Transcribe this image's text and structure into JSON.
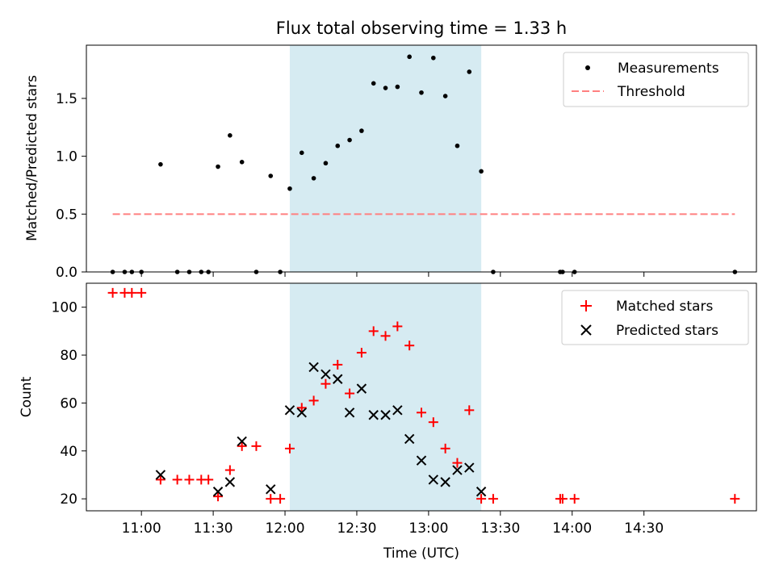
{
  "chart_data": [
    {
      "type": "scatter",
      "title": "Flux total observing time = 1.33 h",
      "xlabel": "",
      "ylabel": "Matched/Predicted stars",
      "ylim": [
        0,
        1.96
      ],
      "yticks": [
        "0.0",
        "0.5",
        "1.0",
        "1.5"
      ],
      "ytick_values": [
        0,
        0.5,
        1.0,
        1.5
      ],
      "legend_position": "top-right",
      "shaded_interval": [
        "12:02",
        "13:22"
      ],
      "series": [
        {
          "name": "Measurements",
          "color": "#000000",
          "marker": "dot",
          "x": [
            "10:48",
            "10:53",
            "10:56",
            "11:00",
            "11:08",
            "11:15",
            "11:20",
            "11:25",
            "11:28",
            "11:32",
            "11:37",
            "11:42",
            "11:48",
            "11:54",
            "11:58",
            "12:02",
            "12:07",
            "12:12",
            "12:17",
            "12:22",
            "12:27",
            "12:32",
            "12:37",
            "12:42",
            "12:47",
            "12:52",
            "12:57",
            "13:02",
            "13:07",
            "13:12",
            "13:17",
            "13:22",
            "13:27",
            "13:55",
            "13:56",
            "14:01",
            "15:08"
          ],
          "y": [
            0,
            0,
            0,
            0,
            0.93,
            0,
            0,
            0,
            0,
            0.91,
            1.18,
            0.95,
            0,
            0.83,
            0,
            0.72,
            1.03,
            0.81,
            0.94,
            1.09,
            1.14,
            1.22,
            1.63,
            1.59,
            1.6,
            1.86,
            1.55,
            1.85,
            1.52,
            1.09,
            1.73,
            0.87,
            0,
            0,
            0,
            0,
            0
          ]
        },
        {
          "name": "Threshold",
          "color": "#ff8080",
          "style": "dashed",
          "x": [
            "10:48",
            "15:08"
          ],
          "y": [
            0.5,
            0.5
          ]
        }
      ]
    },
    {
      "type": "scatter",
      "title": "",
      "xlabel": "Time (UTC)",
      "ylabel": "Count",
      "ylim": [
        15,
        110
      ],
      "yticks": [
        "20",
        "40",
        "60",
        "80",
        "100"
      ],
      "ytick_values": [
        20,
        40,
        60,
        80,
        100
      ],
      "xlim": [
        "10:37",
        "15:17"
      ],
      "xticks": [
        "11:00",
        "11:30",
        "12:00",
        "12:30",
        "13:00",
        "13:30",
        "14:00",
        "14:30"
      ],
      "legend_position": "top-right",
      "shaded_interval": [
        "12:02",
        "13:22"
      ],
      "series": [
        {
          "name": "Matched stars",
          "color": "#ff0000",
          "marker": "plus",
          "x": [
            "10:48",
            "10:53",
            "10:56",
            "11:00",
            "11:08",
            "11:15",
            "11:20",
            "11:25",
            "11:28",
            "11:32",
            "11:37",
            "11:42",
            "11:48",
            "11:54",
            "11:58",
            "12:02",
            "12:07",
            "12:12",
            "12:17",
            "12:22",
            "12:27",
            "12:32",
            "12:37",
            "12:42",
            "12:47",
            "12:52",
            "12:57",
            "13:02",
            "13:07",
            "13:12",
            "13:17",
            "13:22",
            "13:27",
            "13:55",
            "13:56",
            "14:01",
            "15:08"
          ],
          "y": [
            106,
            106,
            106,
            106,
            28,
            28,
            28,
            28,
            28,
            21,
            32,
            42,
            42,
            20,
            20,
            41,
            58,
            61,
            68,
            76,
            64,
            81,
            90,
            88,
            92,
            84,
            56,
            52,
            41,
            35,
            57,
            20,
            20,
            20,
            20,
            20,
            20
          ]
        },
        {
          "name": "Predicted stars",
          "color": "#000000",
          "marker": "x",
          "x": [
            "11:08",
            "11:32",
            "11:37",
            "11:42",
            "11:54",
            "12:02",
            "12:07",
            "12:12",
            "12:17",
            "12:22",
            "12:27",
            "12:32",
            "12:37",
            "12:42",
            "12:47",
            "12:52",
            "12:57",
            "13:02",
            "13:07",
            "13:12",
            "13:17",
            "13:22"
          ],
          "y": [
            30,
            23,
            27,
            44,
            24,
            57,
            56,
            75,
            72,
            70,
            56,
            66,
            55,
            55,
            57,
            45,
            36,
            28,
            27,
            32,
            33,
            23
          ]
        }
      ]
    }
  ]
}
